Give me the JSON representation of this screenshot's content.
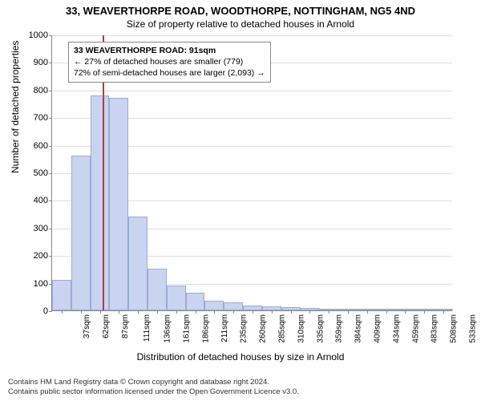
{
  "title_main": "33, WEAVERTHORPE ROAD, WOODTHORPE, NOTTINGHAM, NG5 4ND",
  "title_sub": "Size of property relative to detached houses in Arnold",
  "y_axis_label": "Number of detached properties",
  "x_axis_label": "Distribution of detached houses by size in Arnold",
  "info_box": {
    "line1": "33 WEAVERTHORPE ROAD: 91sqm",
    "line2": "← 27% of detached houses are smaller (779)",
    "line3": "72% of semi-detached houses are larger (2,093) →"
  },
  "chart": {
    "type": "histogram",
    "ylim": [
      0,
      1000
    ],
    "ytick_step": 100,
    "bar_fill": "#c8d4f0",
    "bar_border": "#9aacd6",
    "grid_color": "#e0e0e0",
    "axis_color": "#888888",
    "marker_color": "#d03030",
    "marker_x": 91,
    "x_min": 25,
    "x_bin_width": 25,
    "x_tick_labels": [
      "37sqm",
      "62sqm",
      "87sqm",
      "111sqm",
      "136sqm",
      "161sqm",
      "186sqm",
      "211sqm",
      "235sqm",
      "260sqm",
      "285sqm",
      "310sqm",
      "335sqm",
      "359sqm",
      "384sqm",
      "409sqm",
      "434sqm",
      "459sqm",
      "483sqm",
      "508sqm",
      "533sqm"
    ],
    "values": [
      110,
      560,
      780,
      770,
      340,
      150,
      90,
      65,
      35,
      30,
      18,
      14,
      12,
      10,
      6,
      4,
      0,
      3,
      0,
      2,
      2
    ]
  },
  "footer_line1": "Contains HM Land Registry data © Crown copyright and database right 2024.",
  "footer_line2": "Contains public sector information licensed under the Open Government Licence v3.0."
}
